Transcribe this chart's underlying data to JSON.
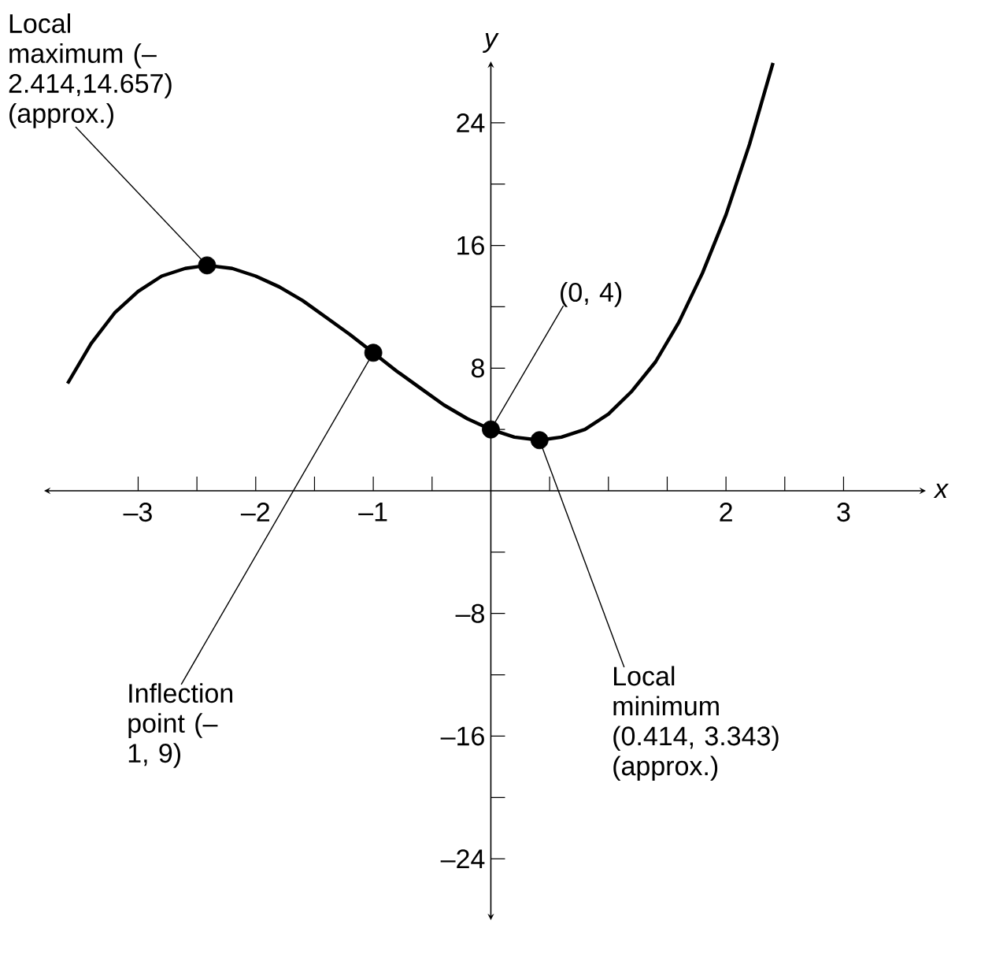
{
  "chart_data": {
    "type": "line",
    "xlabel": "x",
    "ylabel": "y",
    "xlim": [
      -3.8,
      3.7
    ],
    "ylim": [
      -28,
      28
    ],
    "xticks": [
      {
        "value": -3,
        "label": "–3"
      },
      {
        "value": -2.5,
        "label": null
      },
      {
        "value": -2,
        "label": "–2"
      },
      {
        "value": -1.5,
        "label": null
      },
      {
        "value": -1,
        "label": "–1"
      },
      {
        "value": -0.5,
        "label": null
      },
      {
        "value": 0.5,
        "label": null
      },
      {
        "value": 1,
        "label": null
      },
      {
        "value": 1.5,
        "label": null
      },
      {
        "value": 2,
        "label": "2"
      },
      {
        "value": 2.5,
        "label": null
      },
      {
        "value": 3,
        "label": "3"
      }
    ],
    "yticks": [
      {
        "value": -24,
        "label": "–24"
      },
      {
        "value": -20,
        "label": null
      },
      {
        "value": -16,
        "label": "–16"
      },
      {
        "value": -12,
        "label": null
      },
      {
        "value": -8,
        "label": "–8"
      },
      {
        "value": -4,
        "label": null
      },
      {
        "value": 4,
        "label": null
      },
      {
        "value": 8,
        "label": "8"
      },
      {
        "value": 12,
        "label": null
      },
      {
        "value": 16,
        "label": "16"
      },
      {
        "value": 20,
        "label": null
      },
      {
        "value": 24,
        "label": "24"
      }
    ],
    "series": [
      {
        "type": "line",
        "color": "#000000",
        "marker": "none",
        "x": [
          -3.6,
          -3.4,
          -3.2,
          -3.0,
          -2.8,
          -2.6,
          -2.414,
          -2.2,
          -2.0,
          -1.8,
          -1.6,
          -1.4,
          -1.2,
          -1.0,
          -0.8,
          -0.6,
          -0.4,
          -0.2,
          0,
          0.2,
          0.414,
          0.6,
          0.8,
          1.0,
          1.2,
          1.4,
          1.6,
          1.8,
          2.0,
          2.2,
          2.4
        ],
        "values": [
          7.0,
          9.6,
          11.6,
          13.0,
          14.0,
          14.5,
          14.7,
          14.5,
          14.0,
          13.3,
          12.4,
          11.3,
          10.2,
          9.0,
          7.8,
          6.7,
          5.6,
          4.7,
          4.0,
          3.5,
          3.3,
          3.5,
          4.0,
          5.0,
          6.5,
          8.4,
          11.0,
          14.2,
          18.0,
          22.6,
          27.9
        ]
      },
      {
        "type": "scatter",
        "color": "#000000",
        "marker": "circle",
        "x": [
          -2.414,
          -1,
          0,
          0.414
        ],
        "values": [
          14.7,
          9,
          4,
          3.3
        ]
      }
    ],
    "annotations": [
      {
        "text": "Local maximum (–2.414,14.657) (approx.)",
        "x": -2.414,
        "y": 14.7
      },
      {
        "text": "Inflection point (–1, 9)",
        "x": -1,
        "y": 9
      },
      {
        "text": "(0, 4)",
        "x": 0,
        "y": 4
      },
      {
        "text": "Local minimum (0.414, 3.343) (approx.)",
        "x": 0.414,
        "y": 3.3
      }
    ]
  }
}
